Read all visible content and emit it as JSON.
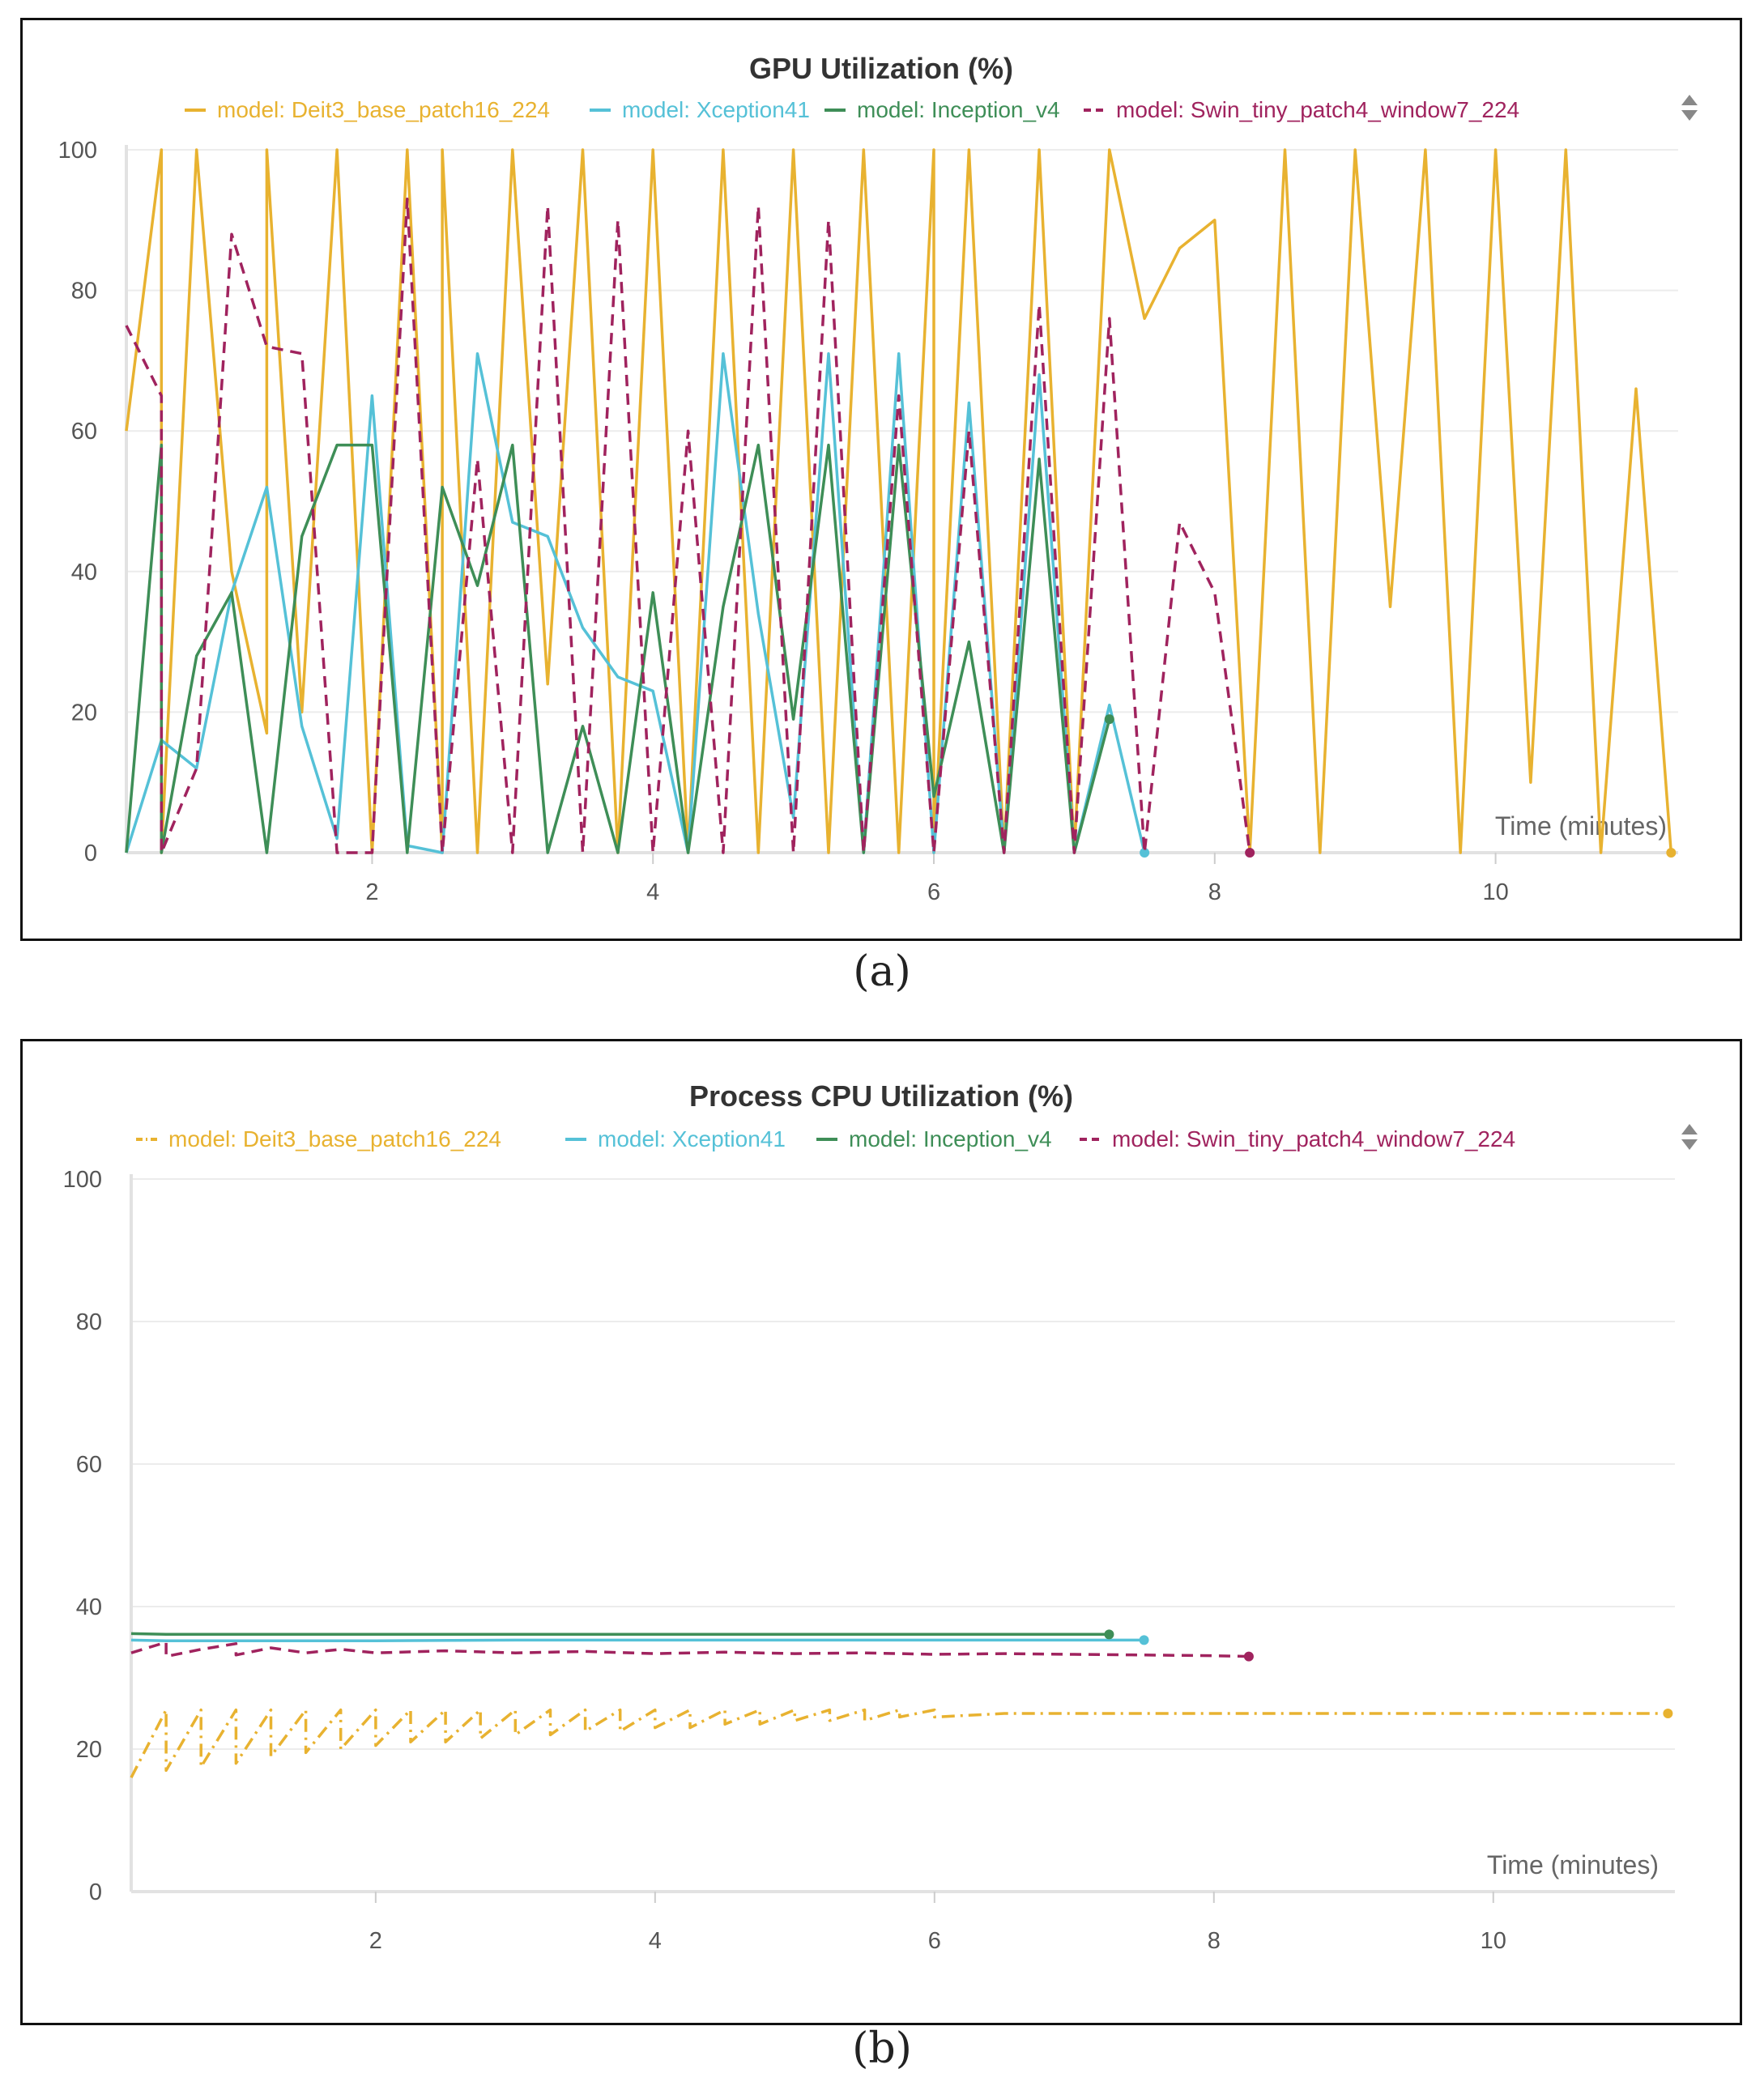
{
  "figures": {
    "a": {
      "caption": "(a)"
    },
    "b": {
      "caption": "(b)"
    }
  },
  "icons": {
    "legend_toggle": "sort-updown-icon"
  },
  "chart_data": [
    {
      "id": "a",
      "type": "line",
      "title": "GPU Utilization (%)",
      "xlabel": "Time (minutes)",
      "ylabel": "",
      "xlim": [
        0.25,
        11.3
      ],
      "ylim": [
        0,
        100
      ],
      "xticks": [
        2,
        4,
        6,
        8,
        10
      ],
      "yticks": [
        0,
        20,
        40,
        60,
        80,
        100
      ],
      "grid": true,
      "legend_position": "top",
      "series": [
        {
          "name": "model: Deit3_base_patch16_224",
          "color": "#E8B230",
          "dash": "solid",
          "x": [
            0.25,
            0.5,
            0.5,
            0.75,
            1.0,
            1.25,
            1.25,
            1.5,
            1.75,
            2.0,
            2.25,
            2.5,
            2.5,
            2.75,
            3.0,
            3.25,
            3.5,
            3.75,
            4.0,
            4.25,
            4.5,
            4.75,
            5.0,
            5.25,
            5.5,
            5.75,
            6.0,
            6.0,
            6.25,
            6.5,
            6.75,
            7.0,
            7.25,
            7.5,
            7.75,
            8.0,
            8.25,
            8.5,
            8.75,
            9.0,
            9.25,
            9.5,
            9.75,
            10.0,
            10.25,
            10.5,
            10.75,
            11.0,
            11.25
          ],
          "values": [
            60,
            100,
            0,
            100,
            40,
            17,
            100,
            20,
            100,
            0,
            100,
            0,
            100,
            0,
            100,
            24,
            100,
            0,
            100,
            0,
            100,
            0,
            100,
            0,
            100,
            0,
            100,
            0,
            100,
            0,
            100,
            0,
            100,
            76,
            86,
            90,
            0,
            100,
            0,
            100,
            35,
            100,
            0,
            100,
            10,
            100,
            0,
            66,
            0
          ]
        },
        {
          "name": "model: Xception41",
          "color": "#55C1D7",
          "dash": "solid",
          "x": [
            0.25,
            0.5,
            0.75,
            1.0,
            1.25,
            1.5,
            1.75,
            2.0,
            2.25,
            2.5,
            2.75,
            3.0,
            3.25,
            3.5,
            3.75,
            4.0,
            4.25,
            4.5,
            4.75,
            5.0,
            5.25,
            5.5,
            5.75,
            6.0,
            6.25,
            6.5,
            6.75,
            7.0,
            7.25,
            7.5
          ],
          "values": [
            0,
            16,
            12,
            37,
            52,
            18,
            2,
            65,
            1,
            0,
            71,
            47,
            45,
            32,
            25,
            23,
            0,
            71,
            34,
            5,
            71,
            0,
            71,
            0,
            64,
            0,
            68,
            0,
            21,
            0
          ]
        },
        {
          "name": "model: Inception_v4",
          "color": "#3E8E57",
          "dash": "solid",
          "x": [
            0.25,
            0.5,
            0.5,
            0.75,
            1.0,
            1.25,
            1.5,
            1.75,
            2.0,
            2.25,
            2.5,
            2.75,
            3.0,
            3.25,
            3.5,
            3.75,
            4.0,
            4.25,
            4.5,
            4.75,
            5.0,
            5.25,
            5.5,
            5.75,
            6.0,
            6.25,
            6.5,
            6.75,
            7.0,
            7.25
          ],
          "values": [
            0,
            58,
            0,
            28,
            37,
            0,
            45,
            58,
            58,
            0,
            52,
            38,
            58,
            0,
            18,
            0,
            37,
            0,
            35,
            58,
            19,
            58,
            0,
            58,
            8,
            30,
            0,
            56,
            0,
            19
          ]
        },
        {
          "name": "model: Swin_tiny_patch4_window7_224",
          "color": "#A0235E",
          "dash": "dashed",
          "x": [
            0.25,
            0.5,
            0.5,
            0.75,
            1.0,
            1.25,
            1.5,
            1.75,
            2.0,
            2.25,
            2.5,
            2.75,
            3.0,
            3.25,
            3.5,
            3.75,
            4.0,
            4.25,
            4.5,
            4.75,
            5.0,
            5.25,
            5.5,
            5.75,
            6.0,
            6.25,
            6.5,
            6.75,
            7.0,
            7.25,
            7.5,
            7.75,
            8.0,
            8.25
          ],
          "values": [
            75,
            65,
            0,
            12,
            88,
            72,
            71,
            0,
            0,
            93,
            0,
            56,
            0,
            92,
            0,
            90,
            0,
            60,
            0,
            92,
            0,
            90,
            0,
            65,
            0,
            60,
            0,
            78,
            0,
            76,
            0,
            47,
            37,
            0
          ]
        }
      ]
    },
    {
      "id": "b",
      "type": "line",
      "title": "Process CPU Utilization (%)",
      "xlabel": "Time (minutes)",
      "ylabel": "",
      "xlim": [
        0.25,
        11.3
      ],
      "ylim": [
        0,
        100
      ],
      "xticks": [
        2,
        4,
        6,
        8,
        10
      ],
      "yticks": [
        0,
        20,
        40,
        60,
        80,
        100
      ],
      "grid": true,
      "legend_position": "top",
      "series": [
        {
          "name": "model: Deit3_base_patch16_224",
          "color": "#E8B230",
          "dash": "dashdot",
          "x": [
            0.25,
            0.5,
            0.5,
            0.75,
            0.75,
            1.0,
            1.0,
            1.25,
            1.25,
            1.5,
            1.5,
            1.75,
            1.75,
            2.0,
            2.0,
            2.25,
            2.25,
            2.5,
            2.5,
            2.75,
            2.75,
            3.0,
            3.0,
            3.25,
            3.25,
            3.5,
            3.5,
            3.75,
            3.75,
            4.0,
            4.0,
            4.25,
            4.25,
            4.5,
            4.5,
            4.75,
            4.75,
            5.0,
            5.0,
            5.25,
            5.25,
            5.5,
            5.5,
            5.75,
            5.75,
            6.0,
            6.0,
            6.5,
            7.0,
            7.5,
            8.0,
            8.5,
            9.0,
            9.5,
            10.0,
            10.5,
            11.0,
            11.25
          ],
          "values": [
            16,
            25.5,
            17,
            25.5,
            17.5,
            25.5,
            18,
            25.5,
            19,
            25.5,
            19.5,
            25.5,
            20,
            25.5,
            20.5,
            25.5,
            21,
            25.5,
            21,
            25.5,
            21.5,
            25.5,
            22,
            25.5,
            22,
            25.5,
            22.5,
            25.5,
            22.5,
            25.5,
            23,
            25.5,
            23,
            25.5,
            23.5,
            25.5,
            23.5,
            25.5,
            24,
            25.5,
            24,
            25.5,
            24,
            25.5,
            24.5,
            25.5,
            24.5,
            25,
            25,
            25,
            25,
            25,
            25,
            25,
            25,
            25,
            25,
            25
          ]
        },
        {
          "name": "model: Xception41",
          "color": "#55C1D7",
          "dash": "solid",
          "x": [
            0.25,
            0.5,
            1.0,
            2.0,
            3.0,
            4.0,
            5.0,
            6.0,
            7.0,
            7.5
          ],
          "values": [
            35.3,
            35.2,
            35.2,
            35.2,
            35.3,
            35.3,
            35.3,
            35.3,
            35.3,
            35.3
          ]
        },
        {
          "name": "model: Inception_v4",
          "color": "#3E8E57",
          "dash": "solid",
          "x": [
            0.25,
            0.5,
            1.0,
            2.0,
            3.0,
            4.0,
            5.0,
            6.0,
            7.0,
            7.25
          ],
          "values": [
            36.2,
            36.1,
            36.1,
            36.1,
            36.1,
            36.1,
            36.1,
            36.1,
            36.1,
            36.1
          ]
        },
        {
          "name": "model: Swin_tiny_patch4_window7_224",
          "color": "#A0235E",
          "dash": "dashed",
          "x": [
            0.25,
            0.5,
            0.5,
            0.75,
            1.0,
            1.0,
            1.25,
            1.5,
            1.75,
            2.0,
            2.5,
            3.0,
            3.5,
            4.0,
            4.5,
            5.0,
            5.5,
            6.0,
            6.5,
            7.0,
            7.5,
            8.0,
            8.25
          ],
          "values": [
            33.5,
            35,
            33,
            34,
            34.8,
            33.2,
            34.2,
            33.5,
            34,
            33.5,
            33.8,
            33.5,
            33.7,
            33.4,
            33.6,
            33.4,
            33.5,
            33.3,
            33.4,
            33.3,
            33.2,
            33.1,
            33
          ]
        }
      ]
    }
  ]
}
